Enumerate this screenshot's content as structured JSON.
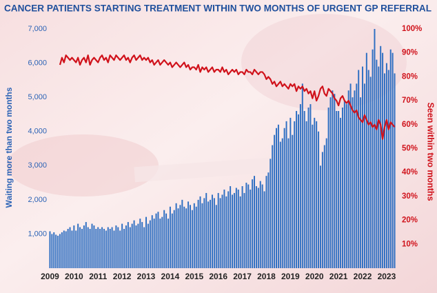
{
  "chart_data": {
    "type": "bar_line",
    "title": "CANCER PATIENTS STARTING TREATMENT WITHIN TWO MONTHS OF URGENT GP REFERRAL",
    "ylabel": "Waiting more than two months",
    "y2label": "Seen within two months",
    "categories": [
      "2009",
      null,
      null,
      null,
      null,
      null,
      null,
      null,
      null,
      null,
      null,
      null,
      "2010",
      null,
      null,
      null,
      null,
      null,
      null,
      null,
      null,
      null,
      null,
      null,
      "2011",
      null,
      null,
      null,
      null,
      null,
      null,
      null,
      null,
      null,
      null,
      null,
      "2012",
      null,
      null,
      null,
      null,
      null,
      null,
      null,
      null,
      null,
      null,
      null,
      "2013",
      null,
      null,
      null,
      null,
      null,
      null,
      null,
      null,
      null,
      null,
      null,
      "2014",
      null,
      null,
      null,
      null,
      null,
      null,
      null,
      null,
      null,
      null,
      null,
      "2015",
      null,
      null,
      null,
      null,
      null,
      null,
      null,
      null,
      null,
      null,
      null,
      "2016",
      null,
      null,
      null,
      null,
      null,
      null,
      null,
      null,
      null,
      null,
      null,
      "2017",
      null,
      null,
      null,
      null,
      null,
      null,
      null,
      null,
      null,
      null,
      null,
      "2018",
      null,
      null,
      null,
      null,
      null,
      null,
      null,
      null,
      null,
      null,
      null,
      "2019",
      null,
      null,
      null,
      null,
      null,
      null,
      null,
      null,
      null,
      null,
      null,
      "2020",
      null,
      null,
      null,
      null,
      null,
      null,
      null,
      null,
      null,
      null,
      null,
      "2021",
      null,
      null,
      null,
      null,
      null,
      null,
      null,
      null,
      null,
      null,
      null,
      "2022",
      null,
      null,
      null,
      null,
      null,
      null,
      null,
      null,
      null,
      null,
      null,
      "2023",
      null,
      null,
      null,
      null
    ],
    "series": [
      {
        "type": "bar",
        "color": "#2f6fc2",
        "values": [
          1080,
          1000,
          1050,
          980,
          950,
          1000,
          1050,
          1100,
          1080,
          1150,
          1200,
          1100,
          1250,
          1100,
          1300,
          1200,
          1150,
          1250,
          1350,
          1200,
          1150,
          1300,
          1250,
          1150,
          1200,
          1150,
          1200,
          1150,
          1100,
          1200,
          1150,
          1200,
          1100,
          1250,
          1200,
          1100,
          1300,
          1150,
          1250,
          1350,
          1200,
          1300,
          1400,
          1250,
          1300,
          1450,
          1350,
          1200,
          1500,
          1300,
          1400,
          1550,
          1450,
          1600,
          1650,
          1450,
          1500,
          1700,
          1600,
          1450,
          1800,
          1600,
          1700,
          1900,
          1750,
          1850,
          2000,
          1800,
          1750,
          1950,
          1850,
          1700,
          1900,
          1800,
          2000,
          2100,
          1900,
          2050,
          2200,
          1950,
          2000,
          2150,
          2050,
          1850,
          2200,
          2050,
          2150,
          2300,
          2100,
          2250,
          2400,
          2150,
          2200,
          2350,
          2300,
          2100,
          2400,
          2200,
          2500,
          2450,
          2300,
          2600,
          2700,
          2400,
          2350,
          2550,
          2450,
          2250,
          2700,
          2800,
          3200,
          3600,
          3900,
          4100,
          4200,
          3700,
          3800,
          4100,
          4300,
          3800,
          4400,
          3900,
          4300,
          4600,
          4500,
          4800,
          5400,
          4600,
          4300,
          4700,
          4800,
          4200,
          4400,
          4300,
          4000,
          3000,
          3400,
          3600,
          3800,
          4700,
          5000,
          5200,
          5100,
          4600,
          4600,
          4400,
          4700,
          4900,
          4800,
          5200,
          5400,
          5000,
          5200,
          5400,
          5800,
          5000,
          5900,
          5400,
          6300,
          5800,
          5600,
          6400,
          7000,
          6100,
          5900,
          6500,
          6300,
          5700,
          6000,
          5800,
          6400,
          6300,
          5700
        ]
      },
      {
        "type": "line",
        "axis": "y2",
        "color": "#d0121b",
        "values": [
          null,
          null,
          null,
          null,
          null,
          85,
          88,
          86,
          89,
          88,
          87,
          88,
          87,
          86,
          88,
          85,
          87,
          88,
          86,
          89,
          85,
          87,
          88,
          87,
          86,
          88,
          89,
          87,
          88,
          86,
          89,
          88,
          87,
          89,
          88,
          87,
          88,
          89,
          87,
          88,
          86,
          88,
          89,
          87,
          88,
          89,
          87,
          88,
          87,
          88,
          86,
          87,
          85,
          86,
          87,
          85,
          86,
          87,
          86,
          85,
          86,
          84,
          85,
          86,
          85,
          84,
          85,
          86,
          84,
          85,
          83,
          84,
          84,
          83,
          85,
          82,
          84,
          83,
          84,
          82,
          83,
          84,
          82,
          83,
          83,
          82,
          84,
          82,
          83,
          81,
          82,
          83,
          82,
          83,
          81,
          82,
          82,
          81,
          83,
          82,
          82,
          81,
          83,
          82,
          81,
          82,
          82,
          81,
          79,
          80,
          79,
          77,
          78,
          76,
          77,
          78,
          76,
          77,
          76,
          75,
          77,
          76,
          77,
          74,
          76,
          75,
          76,
          74,
          75,
          73,
          74,
          71,
          74,
          70,
          72,
          75,
          76,
          73,
          72,
          75,
          74,
          73,
          71,
          70,
          68,
          71,
          72,
          70,
          69,
          70,
          68,
          66,
          65,
          66,
          63,
          62,
          61,
          64,
          62,
          60,
          61,
          59,
          60,
          58,
          62,
          60,
          54,
          59,
          62,
          58,
          61,
          60,
          59
        ]
      }
    ],
    "ylim": [
      0,
      7000
    ],
    "yticks": [
      {
        "value": 1000,
        "label": "1,000"
      },
      {
        "value": 2000,
        "label": "2,000"
      },
      {
        "value": 3000,
        "label": "3,000"
      },
      {
        "value": 4000,
        "label": "4,000"
      },
      {
        "value": 5000,
        "label": "5,000"
      },
      {
        "value": 6000,
        "label": "6,000"
      },
      {
        "value": 7000,
        "label": "7,000"
      }
    ],
    "y2lim": [
      0,
      100
    ],
    "y2ticks": [
      {
        "value": 10,
        "label": "10%"
      },
      {
        "value": 20,
        "label": "20%"
      },
      {
        "value": 30,
        "label": "30%"
      },
      {
        "value": 40,
        "label": "40%"
      },
      {
        "value": 50,
        "label": "50%"
      },
      {
        "value": 60,
        "label": "60%"
      },
      {
        "value": 70,
        "label": "70%"
      },
      {
        "value": 80,
        "label": "80%"
      },
      {
        "value": 90,
        "label": "90%"
      },
      {
        "value": 100,
        "label": "100%"
      }
    ],
    "grid": false
  }
}
